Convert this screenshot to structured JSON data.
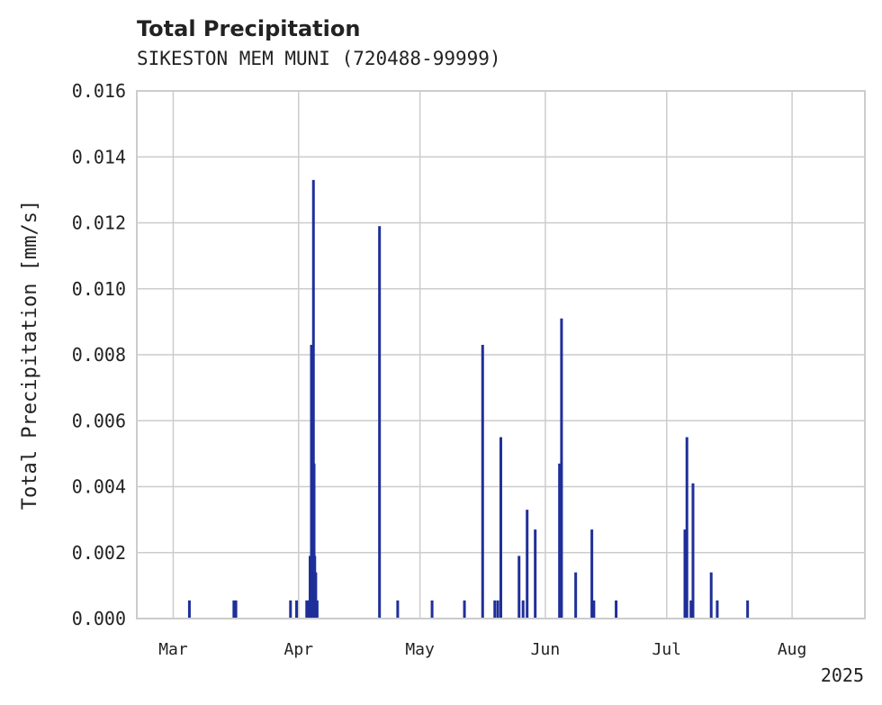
{
  "chart_data": {
    "type": "bar",
    "title": "Total Precipitation",
    "subtitle": "SIKESTON MEM MUNI (720488-99999)",
    "ylabel": "Total Precipitation [mm/s]",
    "xlabel": "",
    "year_label": "2025",
    "ylim": [
      0,
      0.016
    ],
    "yticks": [
      "0.000",
      "0.002",
      "0.004",
      "0.006",
      "0.008",
      "0.010",
      "0.012",
      "0.014",
      "0.016"
    ],
    "xlim": [
      "2025-02-20",
      "2025-08-19"
    ],
    "xticks": [
      {
        "date": "2025-03-01",
        "label": "Mar"
      },
      {
        "date": "2025-04-01",
        "label": "Apr"
      },
      {
        "date": "2025-05-01",
        "label": "May"
      },
      {
        "date": "2025-06-01",
        "label": "Jun"
      },
      {
        "date": "2025-07-01",
        "label": "Jul"
      },
      {
        "date": "2025-08-01",
        "label": "Aug"
      }
    ],
    "grid": true,
    "bar_color": "#1f2f99",
    "series": [
      {
        "points": [
          {
            "x": "2025-03-05",
            "y": 0.00055
          },
          {
            "x": "2025-03-16",
            "y": 0.00055
          },
          {
            "x": "2025-03-16 12:00",
            "y": 0.00055
          },
          {
            "x": "2025-03-30",
            "y": 0.00055
          },
          {
            "x": "2025-03-31 12:00",
            "y": 0.00055
          },
          {
            "x": "2025-04-03",
            "y": 0.00055
          },
          {
            "x": "2025-04-03 10:00",
            "y": 0.00055
          },
          {
            "x": "2025-04-03 20:00",
            "y": 0.0019
          },
          {
            "x": "2025-04-04 04:00",
            "y": 0.0083
          },
          {
            "x": "2025-04-04 10:00",
            "y": 0.0019
          },
          {
            "x": "2025-04-04 16:00",
            "y": 0.0133
          },
          {
            "x": "2025-04-04 20:00",
            "y": 0.0047
          },
          {
            "x": "2025-04-05",
            "y": 0.0019
          },
          {
            "x": "2025-04-05 06:00",
            "y": 0.0014
          },
          {
            "x": "2025-04-05 14:00",
            "y": 0.00055
          },
          {
            "x": "2025-04-21",
            "y": 0.0119
          },
          {
            "x": "2025-04-25 12:00",
            "y": 0.00055
          },
          {
            "x": "2025-05-04",
            "y": 0.00055
          },
          {
            "x": "2025-05-12",
            "y": 0.00055
          },
          {
            "x": "2025-05-16 12:00",
            "y": 0.0083
          },
          {
            "x": "2025-05-19 12:00",
            "y": 0.00055
          },
          {
            "x": "2025-05-20 06:00",
            "y": 0.00055
          },
          {
            "x": "2025-05-21",
            "y": 0.0055
          },
          {
            "x": "2025-05-25 12:00",
            "y": 0.0019
          },
          {
            "x": "2025-05-26 12:00",
            "y": 0.00055
          },
          {
            "x": "2025-05-27 12:00",
            "y": 0.0033
          },
          {
            "x": "2025-05-29 12:00",
            "y": 0.0027
          },
          {
            "x": "2025-06-04 12:00",
            "y": 0.0047
          },
          {
            "x": "2025-06-05",
            "y": 0.0091
          },
          {
            "x": "2025-06-08 12:00",
            "y": 0.0014
          },
          {
            "x": "2025-06-12 12:00",
            "y": 0.0027
          },
          {
            "x": "2025-06-13",
            "y": 0.00055
          },
          {
            "x": "2025-06-18 12:00",
            "y": 0.00055
          },
          {
            "x": "2025-07-05 12:00",
            "y": 0.0027
          },
          {
            "x": "2025-07-06",
            "y": 0.0055
          },
          {
            "x": "2025-07-07",
            "y": 0.00055
          },
          {
            "x": "2025-07-07 12:00",
            "y": 0.0041
          },
          {
            "x": "2025-07-12",
            "y": 0.0014
          },
          {
            "x": "2025-07-13 12:00",
            "y": 0.00055
          },
          {
            "x": "2025-07-21",
            "y": 0.00055
          }
        ]
      }
    ]
  }
}
